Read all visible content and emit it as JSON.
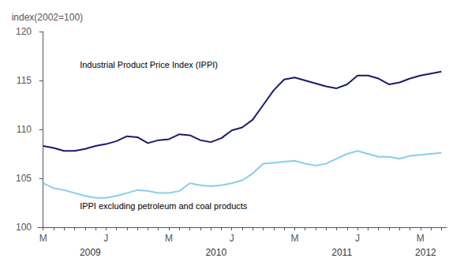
{
  "chart_data": {
    "type": "line",
    "ylabel": "index(2002=100)",
    "categories": [
      "M",
      null,
      null,
      null,
      null,
      null,
      "J",
      null,
      null,
      null,
      null,
      null,
      "M",
      null,
      null,
      null,
      null,
      null,
      "J",
      null,
      null,
      null,
      null,
      null,
      "M",
      null,
      null,
      null,
      null,
      null,
      "J",
      null,
      null,
      null,
      null,
      null,
      "M",
      null,
      null
    ],
    "series": [
      {
        "color": "#1a1a6e",
        "values": [
          108.3,
          108.1,
          107.8,
          107.8,
          108.0,
          108.3,
          108.5,
          108.8,
          109.3,
          109.2,
          108.6,
          108.9,
          109.0,
          109.5,
          109.4,
          108.9,
          108.7,
          109.1,
          109.9,
          110.2,
          111.0,
          112.5,
          114.0,
          115.1,
          115.3,
          115.0,
          114.7,
          114.4,
          114.2,
          114.6,
          115.5,
          115.5,
          115.2,
          114.6,
          114.8,
          115.2,
          115.5,
          115.7,
          115.9
        ]
      },
      {
        "color": "#87ceeb",
        "values": [
          104.5,
          104.0,
          103.8,
          103.5,
          103.2,
          103.0,
          103.0,
          103.2,
          103.5,
          103.8,
          103.7,
          103.5,
          103.5,
          103.7,
          104.5,
          104.3,
          104.2,
          104.3,
          104.5,
          104.8,
          105.5,
          106.5,
          106.6,
          106.7,
          106.8,
          106.5,
          106.3,
          106.5,
          107.0,
          107.5,
          107.8,
          107.5,
          107.2,
          107.2,
          107.0,
          107.3,
          107.4,
          107.5,
          107.6
        ]
      }
    ],
    "ylim": [
      100,
      120
    ],
    "yticks": [
      100,
      105,
      110,
      115,
      120
    ],
    "grid": false,
    "annotations": [
      {
        "text": "Industrial Product Price Index (IPPI)",
        "x": 3.5,
        "y": 116.2
      },
      {
        "text": "IPPI excluding petroleum and coal products",
        "x": 3.5,
        "y": 101.7
      }
    ],
    "x_group_labels": [
      {
        "text": "2009",
        "x": 4.5
      },
      {
        "text": "2010",
        "x": 16.5
      },
      {
        "text": "2011",
        "x": 28.5
      },
      {
        "text": "2012",
        "x": 36.5
      }
    ]
  }
}
